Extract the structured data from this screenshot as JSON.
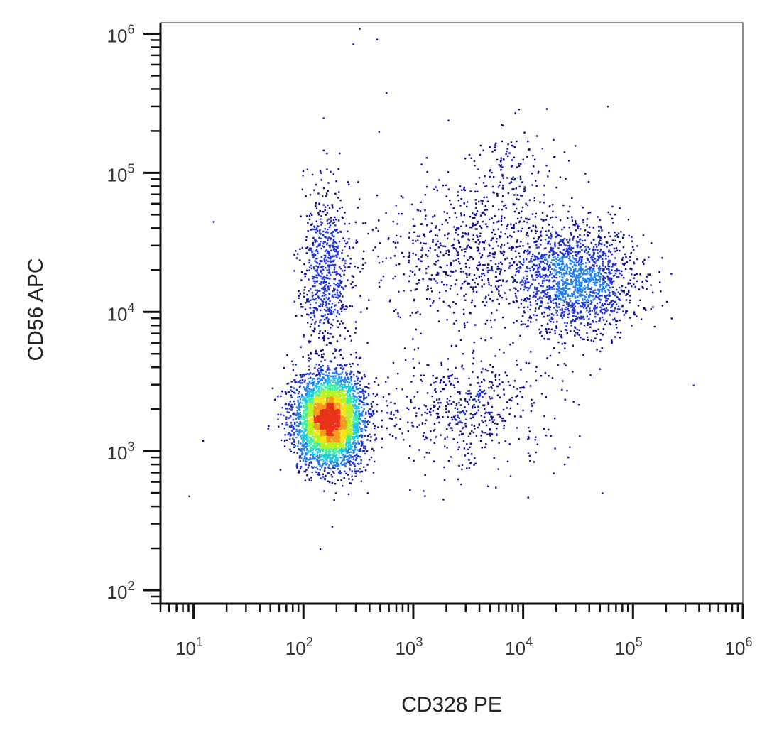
{
  "chart_data": {
    "type": "scatter",
    "style": "flow-cytometry density dot plot",
    "xlabel": "CD328 PE",
    "ylabel": "CD56 APC",
    "x_scale": "log",
    "y_scale": "log",
    "xlim": [
      5,
      1000000
    ],
    "ylim": [
      80,
      1200000
    ],
    "x_ticks": [
      {
        "value": 10,
        "base": "10",
        "exp": "1"
      },
      {
        "value": 100,
        "base": "10",
        "exp": "2"
      },
      {
        "value": 1000,
        "base": "10",
        "exp": "3"
      },
      {
        "value": 10000,
        "base": "10",
        "exp": "4"
      },
      {
        "value": 100000,
        "base": "10",
        "exp": "5"
      },
      {
        "value": 1000000,
        "base": "10",
        "exp": "6"
      }
    ],
    "y_ticks": [
      {
        "value": 100,
        "base": "10",
        "exp": "2"
      },
      {
        "value": 1000,
        "base": "10",
        "exp": "3"
      },
      {
        "value": 10000,
        "base": "10",
        "exp": "4"
      },
      {
        "value": 100000,
        "base": "10",
        "exp": "5"
      },
      {
        "value": 1000000,
        "base": "10",
        "exp": "6"
      }
    ],
    "grid": false,
    "legend": "none",
    "density_colors": [
      "#0a0a9a",
      "#1a2fd6",
      "#1f7ef0",
      "#19c9e8",
      "#3df0a0",
      "#b8f21c",
      "#f5e21a",
      "#f59a1a",
      "#e8321a"
    ],
    "populations": [
      {
        "center": [
          170,
          1700
        ],
        "spread_decades": [
          0.16,
          0.17
        ],
        "events": 4200
      },
      {
        "center": [
          160,
          20000
        ],
        "spread_decades": [
          0.12,
          0.3
        ],
        "events": 700
      },
      {
        "center": [
          30000,
          17000
        ],
        "spread_decades": [
          0.28,
          0.2
        ],
        "events": 1600
      },
      {
        "center": [
          3000,
          25000
        ],
        "spread_decades": [
          0.45,
          0.25
        ],
        "events": 700
      },
      {
        "center": [
          3000,
          2000
        ],
        "spread_decades": [
          0.4,
          0.2
        ],
        "events": 550
      },
      {
        "center": [
          8000,
          90000
        ],
        "spread_decades": [
          0.25,
          0.2
        ],
        "events": 180
      }
    ],
    "outliers": [
      [
        15,
        45000
      ],
      [
        320,
        1100000
      ],
      [
        280,
        850000
      ],
      [
        460,
        920000
      ],
      [
        560,
        380000
      ],
      [
        150,
        250000
      ],
      [
        480,
        200000
      ],
      [
        210,
        140000
      ],
      [
        60000,
        23000
      ],
      [
        1300,
        130000
      ],
      [
        200000,
        12000
      ],
      [
        350000,
        3000
      ],
      [
        180,
        290
      ],
      [
        140,
        200
      ],
      [
        100000,
        23000
      ],
      [
        9,
        480
      ],
      [
        12,
        1200
      ]
    ]
  }
}
